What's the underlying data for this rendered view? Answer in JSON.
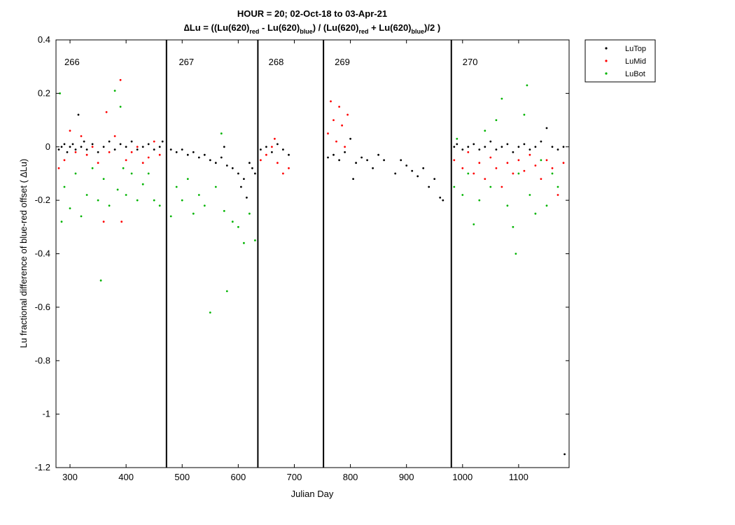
{
  "chart_data": {
    "type": "scatter",
    "title_line1": "HOUR = 20; 02-Oct-18 to 03-Apr-21",
    "title_line2": {
      "delta": "∆",
      "p1": "Lu = ((Lu(620)",
      "sub_red_1": "red",
      "p2": " - Lu(620)",
      "sub_blue_1": "blue",
      "p3": ") / (Lu(620)",
      "sub_red_2": "red",
      "p4": " + Lu(620)",
      "sub_blue_2": "blue",
      "p5": ")/2  )"
    },
    "xlabel": "Julian Day",
    "ylabel": "Lu fractional difference of blue-red offset (  ∆Lu)",
    "xlim": [
      275,
      1190
    ],
    "ylim": [
      -1.2,
      0.4
    ],
    "x_ticks": [
      300,
      400,
      500,
      600,
      700,
      800,
      900,
      1000,
      1100
    ],
    "y_ticks": [
      -1.2,
      -1,
      -0.8,
      -0.6,
      -0.4,
      -0.2,
      0,
      0.2,
      0.4
    ],
    "grid": false,
    "legend_position": "outside-top-right",
    "deployment_boundaries": [
      472,
      635,
      752,
      980
    ],
    "deployments": [
      {
        "label": "266",
        "x": 290
      },
      {
        "label": "267",
        "x": 494
      },
      {
        "label": "268",
        "x": 654
      },
      {
        "label": "269",
        "x": 772
      },
      {
        "label": "270",
        "x": 1000
      }
    ],
    "colors": {
      "LuTop": "#000000",
      "LuMid": "#ff0000",
      "LuBot": "#00b400"
    },
    "series": [
      {
        "name": "LuTop",
        "color": "#000000",
        "points": [
          [
            280,
            -0.01
          ],
          [
            285,
            0.0
          ],
          [
            290,
            0.01
          ],
          [
            295,
            -0.02
          ],
          [
            300,
            0.0
          ],
          [
            305,
            0.01
          ],
          [
            310,
            -0.01
          ],
          [
            315,
            0.12
          ],
          [
            320,
            0.0
          ],
          [
            325,
            0.02
          ],
          [
            330,
            -0.01
          ],
          [
            340,
            0.01
          ],
          [
            350,
            -0.02
          ],
          [
            360,
            0.0
          ],
          [
            370,
            0.02
          ],
          [
            380,
            -0.01
          ],
          [
            390,
            0.01
          ],
          [
            400,
            0.0
          ],
          [
            410,
            0.02
          ],
          [
            420,
            -0.01
          ],
          [
            430,
            0.0
          ],
          [
            440,
            0.01
          ],
          [
            450,
            -0.01
          ],
          [
            460,
            0.0
          ],
          [
            465,
            0.02
          ],
          [
            480,
            -0.01
          ],
          [
            490,
            -0.02
          ],
          [
            500,
            -0.01
          ],
          [
            510,
            -0.03
          ],
          [
            520,
            -0.02
          ],
          [
            530,
            -0.04
          ],
          [
            540,
            -0.03
          ],
          [
            550,
            -0.05
          ],
          [
            560,
            -0.06
          ],
          [
            570,
            -0.04
          ],
          [
            575,
            0.0
          ],
          [
            580,
            -0.07
          ],
          [
            590,
            -0.08
          ],
          [
            600,
            -0.1
          ],
          [
            605,
            -0.15
          ],
          [
            610,
            -0.12
          ],
          [
            615,
            -0.19
          ],
          [
            620,
            -0.06
          ],
          [
            625,
            -0.08
          ],
          [
            630,
            -0.1
          ],
          [
            640,
            -0.01
          ],
          [
            650,
            0.0
          ],
          [
            660,
            -0.02
          ],
          [
            670,
            0.01
          ],
          [
            680,
            -0.01
          ],
          [
            690,
            -0.03
          ],
          [
            760,
            -0.04
          ],
          [
            770,
            -0.03
          ],
          [
            780,
            -0.05
          ],
          [
            790,
            -0.02
          ],
          [
            800,
            0.03
          ],
          [
            805,
            -0.12
          ],
          [
            810,
            -0.06
          ],
          [
            820,
            -0.04
          ],
          [
            830,
            -0.05
          ],
          [
            840,
            -0.08
          ],
          [
            850,
            -0.03
          ],
          [
            860,
            -0.05
          ],
          [
            880,
            -0.1
          ],
          [
            890,
            -0.05
          ],
          [
            900,
            -0.07
          ],
          [
            910,
            -0.09
          ],
          [
            920,
            -0.11
          ],
          [
            930,
            -0.08
          ],
          [
            940,
            -0.15
          ],
          [
            950,
            -0.12
          ],
          [
            960,
            -0.19
          ],
          [
            965,
            -0.2
          ],
          [
            985,
            0.0
          ],
          [
            990,
            0.01
          ],
          [
            1000,
            -0.01
          ],
          [
            1010,
            0.0
          ],
          [
            1020,
            0.01
          ],
          [
            1030,
            -0.01
          ],
          [
            1040,
            0.0
          ],
          [
            1050,
            0.02
          ],
          [
            1060,
            -0.01
          ],
          [
            1070,
            0.0
          ],
          [
            1080,
            0.01
          ],
          [
            1090,
            -0.02
          ],
          [
            1100,
            0.0
          ],
          [
            1110,
            0.01
          ],
          [
            1120,
            -0.01
          ],
          [
            1130,
            0.0
          ],
          [
            1140,
            0.02
          ],
          [
            1150,
            0.07
          ],
          [
            1160,
            0.0
          ],
          [
            1170,
            -0.01
          ],
          [
            1180,
            0.0
          ],
          [
            1182,
            -1.15
          ]
        ]
      },
      {
        "name": "LuMid",
        "color": "#ff0000",
        "points": [
          [
            280,
            -0.08
          ],
          [
            290,
            -0.05
          ],
          [
            300,
            0.06
          ],
          [
            310,
            -0.02
          ],
          [
            320,
            0.04
          ],
          [
            330,
            -0.03
          ],
          [
            340,
            0.0
          ],
          [
            350,
            -0.06
          ],
          [
            360,
            -0.28
          ],
          [
            365,
            0.13
          ],
          [
            370,
            -0.02
          ],
          [
            380,
            0.04
          ],
          [
            390,
            0.25
          ],
          [
            392,
            -0.28
          ],
          [
            400,
            -0.05
          ],
          [
            410,
            -0.02
          ],
          [
            420,
            0.0
          ],
          [
            430,
            -0.06
          ],
          [
            440,
            -0.04
          ],
          [
            450,
            0.02
          ],
          [
            460,
            -0.03
          ],
          [
            640,
            -0.05
          ],
          [
            650,
            -0.03
          ],
          [
            660,
            0.0
          ],
          [
            665,
            0.03
          ],
          [
            670,
            -0.06
          ],
          [
            680,
            -0.1
          ],
          [
            690,
            -0.08
          ],
          [
            760,
            0.05
          ],
          [
            765,
            0.17
          ],
          [
            770,
            0.1
          ],
          [
            775,
            0.02
          ],
          [
            780,
            0.15
          ],
          [
            785,
            0.08
          ],
          [
            790,
            0.0
          ],
          [
            795,
            0.12
          ],
          [
            985,
            -0.05
          ],
          [
            1000,
            -0.08
          ],
          [
            1010,
            -0.02
          ],
          [
            1020,
            -0.1
          ],
          [
            1030,
            -0.06
          ],
          [
            1040,
            -0.12
          ],
          [
            1050,
            -0.04
          ],
          [
            1060,
            -0.08
          ],
          [
            1070,
            -0.15
          ],
          [
            1080,
            -0.06
          ],
          [
            1090,
            -0.1
          ],
          [
            1100,
            -0.05
          ],
          [
            1110,
            -0.09
          ],
          [
            1120,
            -0.03
          ],
          [
            1130,
            -0.07
          ],
          [
            1140,
            -0.12
          ],
          [
            1150,
            -0.05
          ],
          [
            1160,
            -0.08
          ],
          [
            1170,
            -0.18
          ],
          [
            1180,
            -0.06
          ]
        ]
      },
      {
        "name": "LuBot",
        "color": "#00b400",
        "points": [
          [
            282,
            0.2
          ],
          [
            285,
            -0.28
          ],
          [
            290,
            -0.15
          ],
          [
            300,
            -0.23
          ],
          [
            310,
            -0.1
          ],
          [
            320,
            -0.26
          ],
          [
            330,
            -0.18
          ],
          [
            340,
            -0.08
          ],
          [
            350,
            -0.2
          ],
          [
            355,
            -0.5
          ],
          [
            360,
            -0.12
          ],
          [
            370,
            -0.22
          ],
          [
            380,
            0.21
          ],
          [
            385,
            -0.16
          ],
          [
            390,
            0.15
          ],
          [
            395,
            -0.08
          ],
          [
            400,
            -0.18
          ],
          [
            410,
            -0.1
          ],
          [
            420,
            -0.2
          ],
          [
            430,
            -0.14
          ],
          [
            440,
            -0.1
          ],
          [
            450,
            -0.2
          ],
          [
            460,
            -0.22
          ],
          [
            480,
            -0.26
          ],
          [
            490,
            -0.15
          ],
          [
            500,
            -0.2
          ],
          [
            510,
            -0.12
          ],
          [
            520,
            -0.25
          ],
          [
            530,
            -0.18
          ],
          [
            540,
            -0.22
          ],
          [
            550,
            -0.62
          ],
          [
            560,
            -0.15
          ],
          [
            570,
            0.05
          ],
          [
            575,
            -0.24
          ],
          [
            580,
            -0.54
          ],
          [
            590,
            -0.28
          ],
          [
            600,
            -0.3
          ],
          [
            610,
            -0.36
          ],
          [
            620,
            -0.25
          ],
          [
            630,
            -0.35
          ],
          [
            985,
            -0.15
          ],
          [
            990,
            0.03
          ],
          [
            1000,
            -0.18
          ],
          [
            1010,
            -0.1
          ],
          [
            1020,
            -0.29
          ],
          [
            1030,
            -0.2
          ],
          [
            1040,
            0.06
          ],
          [
            1050,
            -0.15
          ],
          [
            1060,
            0.1
          ],
          [
            1070,
            0.18
          ],
          [
            1080,
            -0.22
          ],
          [
            1090,
            -0.3
          ],
          [
            1095,
            -0.4
          ],
          [
            1100,
            -0.1
          ],
          [
            1110,
            0.12
          ],
          [
            1115,
            0.23
          ],
          [
            1120,
            -0.18
          ],
          [
            1130,
            -0.25
          ],
          [
            1140,
            -0.05
          ],
          [
            1150,
            -0.22
          ],
          [
            1160,
            -0.1
          ],
          [
            1170,
            -0.15
          ]
        ]
      }
    ]
  }
}
